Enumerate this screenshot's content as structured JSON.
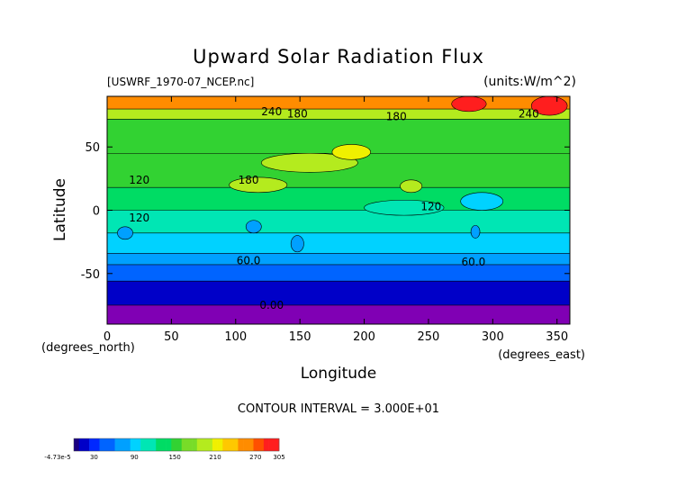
{
  "chart_data": {
    "type": "heatmap",
    "title": "Upward Solar Radiation Flux",
    "file_label": "[USWRF_1970-07_NCEP.nc]",
    "units_label": "(units:W/m^2)",
    "xlabel": "Longitude",
    "ylabel": "Latitude",
    "x_unit_label": "(degrees_east)",
    "y_unit_label": "(degrees_north)",
    "xlim": [
      0,
      360
    ],
    "ylim": [
      -90,
      90
    ],
    "x_ticks": [
      0,
      50,
      100,
      150,
      200,
      250,
      300,
      350
    ],
    "y_ticks": [
      -50,
      0,
      50
    ],
    "contour_interval_text": "CONTOUR INTERVAL = 3.000E+01",
    "colorbar_labels": [
      "-4.73e-5",
      "30",
      "90",
      "150",
      "210",
      "270",
      "305"
    ],
    "colorbar_colors": [
      "#0000c8",
      "#0028ff",
      "#0064ff",
      "#00a0ff",
      "#00d2ff",
      "#00e6b4",
      "#00dc64",
      "#32d232",
      "#78dc28",
      "#b4eb1e",
      "#f0f000",
      "#ffc800",
      "#ff8c00",
      "#ff5000",
      "#ff1e1e"
    ],
    "contour_labels": [
      {
        "text": "0.00",
        "x": 128,
        "y": -75
      },
      {
        "text": "60.0",
        "x": 110,
        "y": -40
      },
      {
        "text": "60.0",
        "x": 285,
        "y": -41
      },
      {
        "text": "120",
        "x": 25,
        "y": 24
      },
      {
        "text": "120",
        "x": 25,
        "y": -6
      },
      {
        "text": "120",
        "x": 252,
        "y": 3
      },
      {
        "text": "180",
        "x": 110,
        "y": 24
      },
      {
        "text": "180",
        "x": 148,
        "y": 76
      },
      {
        "text": "180",
        "x": 225,
        "y": 74
      },
      {
        "text": "240",
        "x": 128,
        "y": 78
      },
      {
        "text": "240",
        "x": 328,
        "y": 76
      }
    ],
    "bands": [
      {
        "lat_min": -90,
        "lat_max": -75,
        "value": 0
      },
      {
        "lat_min": -75,
        "lat_max": -56,
        "value": 15
      },
      {
        "lat_min": -56,
        "lat_max": -43,
        "value": 45
      },
      {
        "lat_min": -43,
        "lat_max": -34,
        "value": 75
      },
      {
        "lat_min": -34,
        "lat_max": -18,
        "value": 100
      },
      {
        "lat_min": -18,
        "lat_max": 0,
        "value": 112
      },
      {
        "lat_min": 0,
        "lat_max": 18,
        "value": 125
      },
      {
        "lat_min": 18,
        "lat_max": 45,
        "value": 148
      },
      {
        "lat_min": 45,
        "lat_max": 72,
        "value": 158
      },
      {
        "lat_min": 72,
        "lat_max": 80,
        "value": 200
      },
      {
        "lat_min": 80,
        "lat_max": 90,
        "value": 255
      }
    ],
    "patches": [
      {
        "lon": [
          8,
          20
        ],
        "lat": [
          -23,
          -13
        ],
        "value": 75
      },
      {
        "lon": [
          108,
          120
        ],
        "lat": [
          -18,
          -8
        ],
        "value": 75
      },
      {
        "lon": [
          143,
          153
        ],
        "lat": [
          -33,
          -20
        ],
        "value": 75
      },
      {
        "lon": [
          283,
          290
        ],
        "lat": [
          -22,
          -12
        ],
        "value": 75
      },
      {
        "lon": [
          275,
          308
        ],
        "lat": [
          0,
          14
        ],
        "value": 100
      },
      {
        "lon": [
          200,
          262
        ],
        "lat": [
          -4,
          8
        ],
        "value": 112
      },
      {
        "lon": [
          95,
          140
        ],
        "lat": [
          14,
          26
        ],
        "value": 185
      },
      {
        "lon": [
          120,
          195
        ],
        "lat": [
          30,
          45
        ],
        "value": 185
      },
      {
        "lon": [
          175,
          205
        ],
        "lat": [
          40,
          52
        ],
        "value": 210
      },
      {
        "lon": [
          228,
          245
        ],
        "lat": [
          14,
          24
        ],
        "value": 200
      },
      {
        "lon": [
          330,
          358
        ],
        "lat": [
          75,
          90
        ],
        "value": 290
      },
      {
        "lon": [
          268,
          295
        ],
        "lat": [
          78,
          90
        ],
        "value": 290
      }
    ]
  }
}
